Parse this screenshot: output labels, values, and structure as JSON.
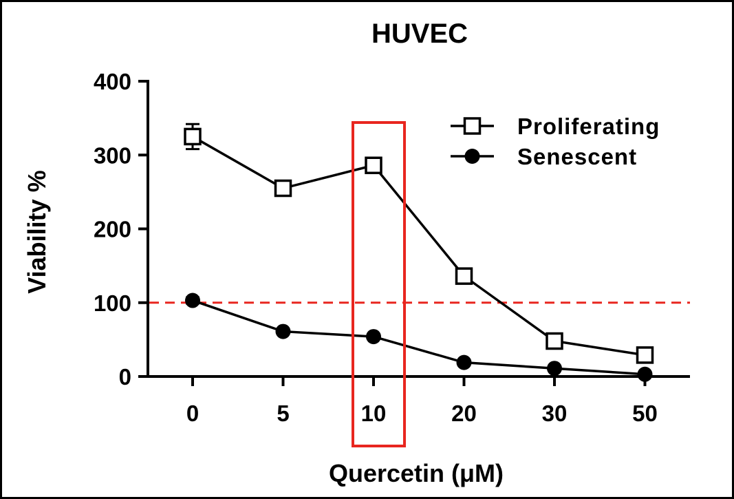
{
  "chart_data": {
    "type": "line",
    "title": "HUVEC",
    "xlabel": "Quercetin (μM)",
    "ylabel": "Viability %",
    "categories": [
      "0",
      "5",
      "10",
      "20",
      "30",
      "50"
    ],
    "yticks": [
      "0",
      "100",
      "200",
      "300",
      "400"
    ],
    "ylim": [
      0,
      400
    ],
    "grid": false,
    "legend_position": "top-right",
    "series": [
      {
        "name": "Proliferating",
        "marker": "open-square",
        "values": [
          325,
          255,
          286,
          136,
          48,
          29
        ],
        "error": [
          17,
          4,
          5,
          5,
          4,
          4
        ]
      },
      {
        "name": "Senescent",
        "marker": "filled-circle",
        "values": [
          103,
          61,
          54,
          19,
          11,
          3
        ],
        "error": [
          4,
          3,
          3,
          2,
          2,
          1
        ]
      }
    ],
    "reference_line": {
      "y": 100,
      "style": "dashed",
      "color": "#e8261f"
    },
    "highlight": {
      "category": "10",
      "color": "#e8261f"
    }
  }
}
